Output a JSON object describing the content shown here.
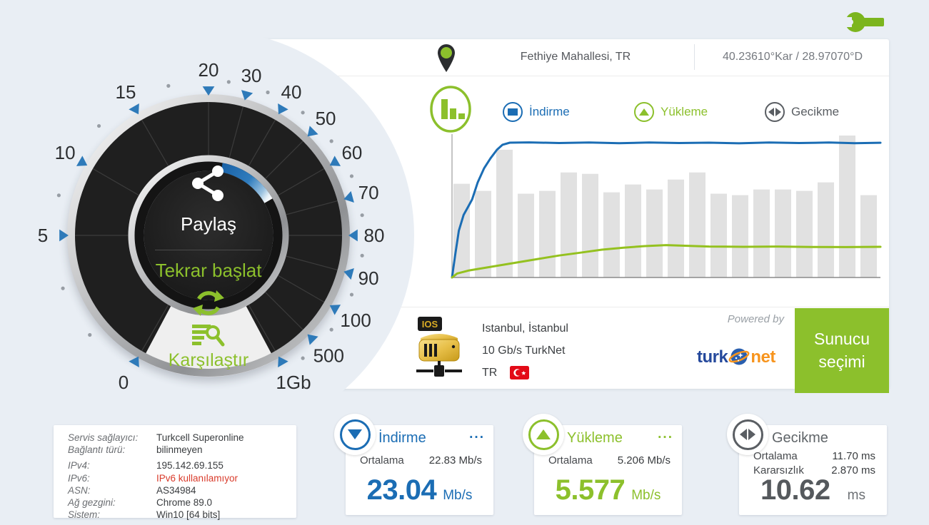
{
  "colors": {
    "background": "#e9eef4",
    "accent_green": "#8cc02c",
    "accent_blue": "#1b6db4",
    "latency_gray": "#5a5e63",
    "alert_red": "#d93b2b",
    "flag_red": "#e30a17",
    "logo_blue": "#25499c",
    "logo_orange": "#f7941d",
    "chart_bar_gray": "#e1e1e1"
  },
  "toolbar": {
    "wrench_icon": "settings-wrench"
  },
  "header": {
    "location": "Fethiye Mahallesi, TR",
    "coordinates": "40.23610°Kar / 28.97070°D"
  },
  "gauge": {
    "share_label": "Paylaş",
    "restart_label": "Tekrar başlat",
    "compare_label": "Karşılaştır",
    "scale": [
      {
        "label": "0",
        "angle": -150
      },
      {
        "label": "5",
        "angle": -90
      },
      {
        "label": "10",
        "angle": -60
      },
      {
        "label": "15",
        "angle": -30
      },
      {
        "label": "20",
        "angle": 0
      },
      {
        "label": "30",
        "angle": 15
      },
      {
        "label": "40",
        "angle": 30
      },
      {
        "label": "50",
        "angle": 45
      },
      {
        "label": "60",
        "angle": 60
      },
      {
        "label": "70",
        "angle": 75
      },
      {
        "label": "80",
        "angle": 90
      },
      {
        "label": "90",
        "angle": 105
      },
      {
        "label": "100",
        "angle": 120
      },
      {
        "label": "500",
        "angle": 135
      },
      {
        "label": "1Gb",
        "angle": 150
      }
    ],
    "minor_tick_angles": [
      -130,
      -110,
      -75,
      -45,
      -15,
      7.5,
      22.5,
      37.5,
      52.5,
      67.5,
      82.5,
      97.5,
      112.5,
      127.5,
      142.5
    ],
    "progress_arc": {
      "start_angle": 11,
      "end_angle": 60
    }
  },
  "legend": {
    "chart_icon": "bar-chart-icon",
    "items": [
      {
        "label": "İndirme",
        "color": "#1b6db4",
        "icon": "down-arrow"
      },
      {
        "label": "Yükleme",
        "color": "#8cc02c",
        "icon": "up-arrow"
      },
      {
        "label": "Gecikme",
        "color": "#5a5e63",
        "icon": "left-right-arrows"
      }
    ]
  },
  "chart_data": {
    "type": "line+bar",
    "title": "",
    "xlabel": "",
    "ylabel": "",
    "grid": false,
    "legend_position": "top",
    "note": "no axis tick labels shown; y values normalized 0-1 of plot height",
    "series": [
      {
        "name": "İndirme",
        "type": "line",
        "color": "#1b6db4",
        "unit": "Mb/s",
        "final_value": 23.04,
        "points": [
          [
            0,
            0
          ],
          [
            0.008,
            0.17
          ],
          [
            0.016,
            0.33
          ],
          [
            0.027,
            0.44
          ],
          [
            0.038,
            0.5
          ],
          [
            0.047,
            0.55
          ],
          [
            0.06,
            0.67
          ],
          [
            0.075,
            0.77
          ],
          [
            0.09,
            0.84
          ],
          [
            0.105,
            0.9
          ],
          [
            0.118,
            0.935
          ],
          [
            0.135,
            0.95
          ],
          [
            0.18,
            0.952
          ],
          [
            0.25,
            0.947
          ],
          [
            0.32,
            0.951
          ],
          [
            0.39,
            0.946
          ],
          [
            0.46,
            0.951
          ],
          [
            0.53,
            0.947
          ],
          [
            0.6,
            0.95
          ],
          [
            0.67,
            0.945
          ],
          [
            0.74,
            0.951
          ],
          [
            0.81,
            0.947
          ],
          [
            0.88,
            0.951
          ],
          [
            0.94,
            0.946
          ],
          [
            1,
            0.949
          ]
        ]
      },
      {
        "name": "Yükleme",
        "type": "line",
        "color": "#94c11f",
        "unit": "Mb/s",
        "final_value": 5.577,
        "points": [
          [
            0,
            0
          ],
          [
            0.012,
            0.028
          ],
          [
            0.04,
            0.05
          ],
          [
            0.08,
            0.07
          ],
          [
            0.12,
            0.09
          ],
          [
            0.16,
            0.11
          ],
          [
            0.2,
            0.13
          ],
          [
            0.25,
            0.155
          ],
          [
            0.3,
            0.175
          ],
          [
            0.35,
            0.196
          ],
          [
            0.4,
            0.21
          ],
          [
            0.45,
            0.221
          ],
          [
            0.5,
            0.228
          ],
          [
            0.55,
            0.223
          ],
          [
            0.6,
            0.218
          ],
          [
            0.68,
            0.216
          ],
          [
            0.76,
            0.218
          ],
          [
            0.84,
            0.215
          ],
          [
            0.92,
            0.214
          ],
          [
            1,
            0.216
          ]
        ]
      },
      {
        "name": "Gecikme",
        "type": "bar",
        "color": "#e1e1e1",
        "unit": "ms",
        "avg_value": 11.7,
        "bars": [
          0.66,
          0.61,
          0.9,
          0.59,
          0.61,
          0.74,
          0.73,
          0.6,
          0.655,
          0.62,
          0.69,
          0.74,
          0.59,
          0.58,
          0.62,
          0.62,
          0.61,
          0.67,
          1.0,
          0.58
        ]
      }
    ]
  },
  "server": {
    "os_badge": "IOS",
    "city": "Istanbul, İstanbul",
    "link": "10 Gb/s TurkNet",
    "country_code": "TR",
    "powered_by": "Powered by",
    "logo_part1": "turk",
    "logo_part2": "net",
    "button_line1": "Sunucu",
    "button_line2": "seçimi"
  },
  "connection_info": {
    "rows": [
      {
        "label": "Servis sağlayıcı:",
        "value": "Turkcell Superonline"
      },
      {
        "label": "Bağlantı türü:",
        "value": "bilinmeyen"
      },
      {
        "label": "IPv4:",
        "value": "195.142.69.155"
      },
      {
        "label": "IPv6:",
        "value": "IPv6 kullanılamıyor",
        "alert": true
      },
      {
        "label": "ASN:",
        "value": "AS34984"
      },
      {
        "label": "Ağ gezgini:",
        "value": "Chrome 89.0"
      },
      {
        "label": "Sistem:",
        "value": "Win10 [64 bits]"
      }
    ]
  },
  "results": {
    "download": {
      "title": "İndirme",
      "menu": "...",
      "avg_label": "Ortalama",
      "avg_value": "22.83 Mb/s",
      "value": "23.04",
      "unit": "Mb/s"
    },
    "upload": {
      "title": "Yükleme",
      "menu": "...",
      "avg_label": "Ortalama",
      "avg_value": "5.206 Mb/s",
      "value": "5.577",
      "unit": "Mb/s"
    },
    "latency": {
      "title": "Gecikme",
      "avg_label": "Ortalama",
      "avg_value": "11.70 ms",
      "jitter_label": "Kararsızlık",
      "jitter_value": "2.870 ms",
      "value": "10.62",
      "unit": "ms"
    }
  }
}
